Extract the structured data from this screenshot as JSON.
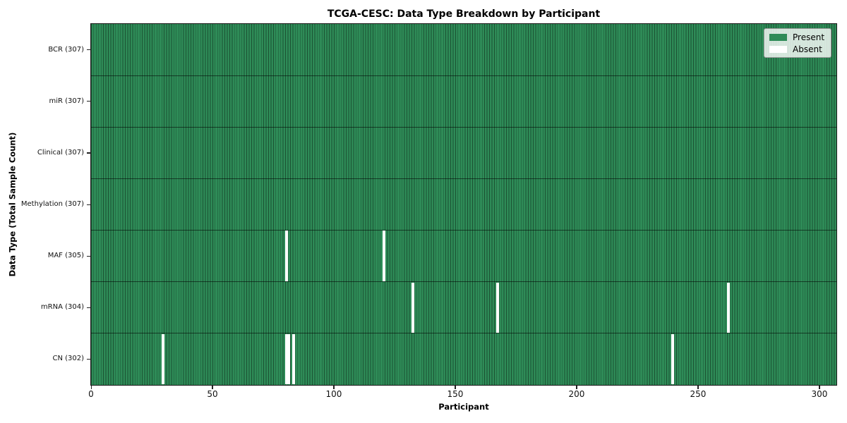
{
  "chart_data": {
    "type": "heatmap",
    "title": "TCGA-CESC: Data Type Breakdown by Participant",
    "xlabel": "Participant",
    "ylabel": "Data Type (Total Sample Count)",
    "x_ticks": [
      0,
      50,
      100,
      150,
      200,
      250,
      300
    ],
    "x_range": [
      0,
      307
    ],
    "n_participants": 307,
    "grid": false,
    "legend_position": "upper-right",
    "colors": {
      "present": "#2e8b57",
      "absent": "#ffffff",
      "cell_edge": "rgba(0,0,0,0.42)",
      "row_divider": "rgba(0,0,0,0.55)",
      "frame": "#1a1a1a"
    },
    "legend_entries": [
      {
        "label": "Present",
        "color": "#2e8b57"
      },
      {
        "label": "Absent",
        "color": "#ffffff"
      }
    ],
    "rows": [
      {
        "label": "BCR (307)",
        "data_type": "BCR",
        "present_count": 307,
        "absent_participants": []
      },
      {
        "label": "miR (307)",
        "data_type": "miR",
        "present_count": 307,
        "absent_participants": []
      },
      {
        "label": "Clinical (307)",
        "data_type": "Clinical",
        "present_count": 307,
        "absent_participants": []
      },
      {
        "label": "Methylation (307)",
        "data_type": "Methylation",
        "present_count": 307,
        "absent_participants": []
      },
      {
        "label": "MAF (305)",
        "data_type": "MAF",
        "present_count": 305,
        "absent_participants": [
          80,
          120
        ]
      },
      {
        "label": "mRNA (304)",
        "data_type": "mRNA",
        "present_count": 304,
        "absent_participants": [
          132,
          167,
          262
        ]
      },
      {
        "label": "CN (302)",
        "data_type": "CN",
        "present_count": 302,
        "absent_participants": [
          29,
          80,
          81,
          83,
          239
        ]
      }
    ]
  }
}
